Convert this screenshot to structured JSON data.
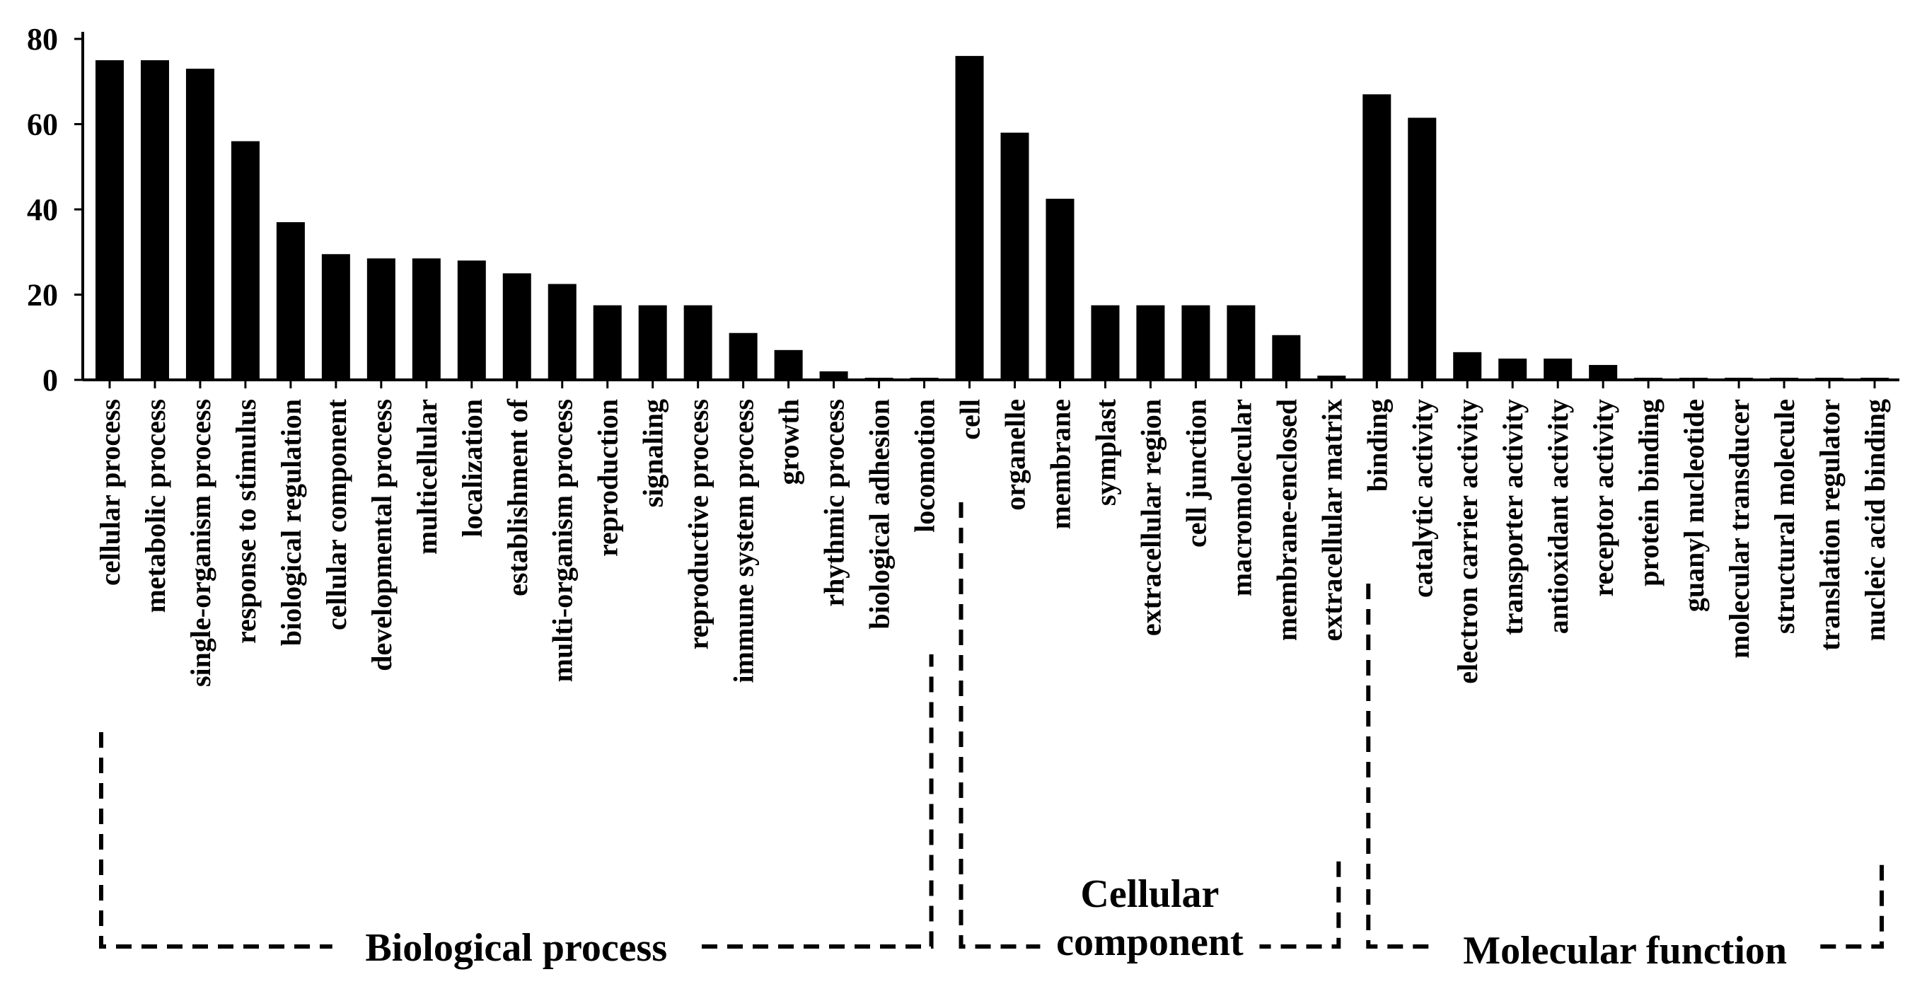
{
  "chart_data": {
    "type": "bar",
    "title": "",
    "xlabel": "",
    "ylabel": "",
    "ylim": [
      0,
      80
    ],
    "y_ticks": [
      0,
      20,
      40,
      60,
      80
    ],
    "grid": false,
    "bar_color": "#000000",
    "categories": [
      "cellular process",
      "metabolic process",
      "single-organism process",
      "response to stimulus",
      "biological regulation",
      "cellular component",
      "developmental process",
      "multicellular",
      "localization",
      "establishment of",
      "multi-organism process",
      "reproduction",
      "signaling",
      "reproductive process",
      "immune system process",
      "growth",
      "rhythmic process",
      "biological adhesion",
      "locomotion",
      "cell",
      "organelle",
      "membrane",
      "symplast",
      "extracellular region",
      "cell junction",
      "macromolecular",
      "membrane-enclosed",
      "extracellular matrix",
      "binding",
      "catalytic activity",
      "electron carrier activity",
      "transporter activity",
      "antioxidant activity",
      "receptor activity",
      "protein binding",
      "guanyl nucleotide",
      "molecular transducer",
      "structural molecule",
      "translation regulator",
      "nucleic acid binding"
    ],
    "values": [
      75,
      75,
      73,
      56,
      37,
      29.5,
      28.5,
      28.5,
      28,
      25,
      22.5,
      17.5,
      17.5,
      17.5,
      11,
      7,
      2,
      0.5,
      0.5,
      76,
      58,
      42.5,
      17.5,
      17.5,
      17.5,
      17.5,
      10.5,
      1,
      67,
      61.5,
      6.5,
      5,
      5,
      3.5,
      0.5,
      0.5,
      0.5,
      0.5,
      0.5,
      0.5
    ],
    "groups": [
      {
        "name": "Biological process",
        "start": 0,
        "end": 18
      },
      {
        "name": "Cellular component",
        "start": 19,
        "end": 27
      },
      {
        "name": "Molecular function",
        "start": 28,
        "end": 39
      }
    ],
    "group_label_lines": {
      "biological": [
        "Biological process"
      ],
      "cellular": [
        "Cellular",
        "component"
      ],
      "molecular": [
        "Molecular function"
      ]
    }
  }
}
